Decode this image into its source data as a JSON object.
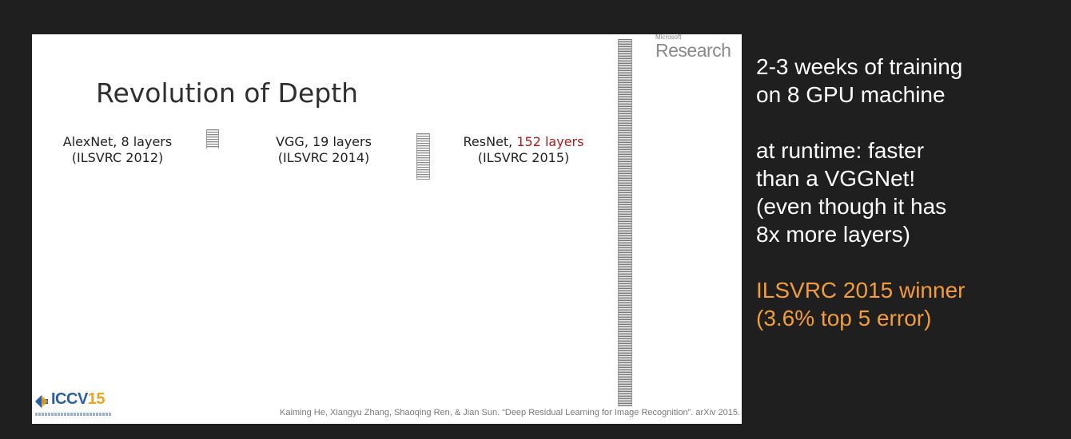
{
  "slide": {
    "title": "Revolution of Depth",
    "logo": {
      "small": "Microsoft",
      "big": "Research"
    },
    "networks": [
      {
        "name": "AlexNet, 8 layers",
        "name_prefix": "AlexNet, ",
        "name_highlight": "8 layers",
        "competition": "(ILSVRC 2012)"
      },
      {
        "name": "VGG, 19 layers",
        "name_prefix": "VGG, ",
        "name_highlight": "19 layers",
        "competition": "(ILSVRC 2014)"
      },
      {
        "name": "ResNet, 152 layers",
        "name_prefix": "ResNet, ",
        "name_highlight": "152 layers",
        "competition": "(ILSVRC 2015)"
      }
    ],
    "conference_logo": {
      "prefix": "ICCV",
      "year": "15"
    },
    "citation": "Kaiming He, Xiangyu Zhang, Shaoqing Ren, & Jian Sun. “Deep Residual Learning for Image Recognition”. arXiv 2015."
  },
  "notes": {
    "line1": "2-3 weeks of training",
    "line2": "on 8 GPU machine",
    "line3": "at runtime: faster",
    "line4": "than a VGGNet!",
    "line5": "(even though it has",
    "line6": "8x more layers)",
    "line7": "ILSVRC 2015 winner",
    "line8": "(3.6% top 5 error)"
  },
  "colors": {
    "background": "#1f1f1f",
    "highlight_red": "#b11a1a",
    "highlight_orange": "#f39c3a"
  }
}
